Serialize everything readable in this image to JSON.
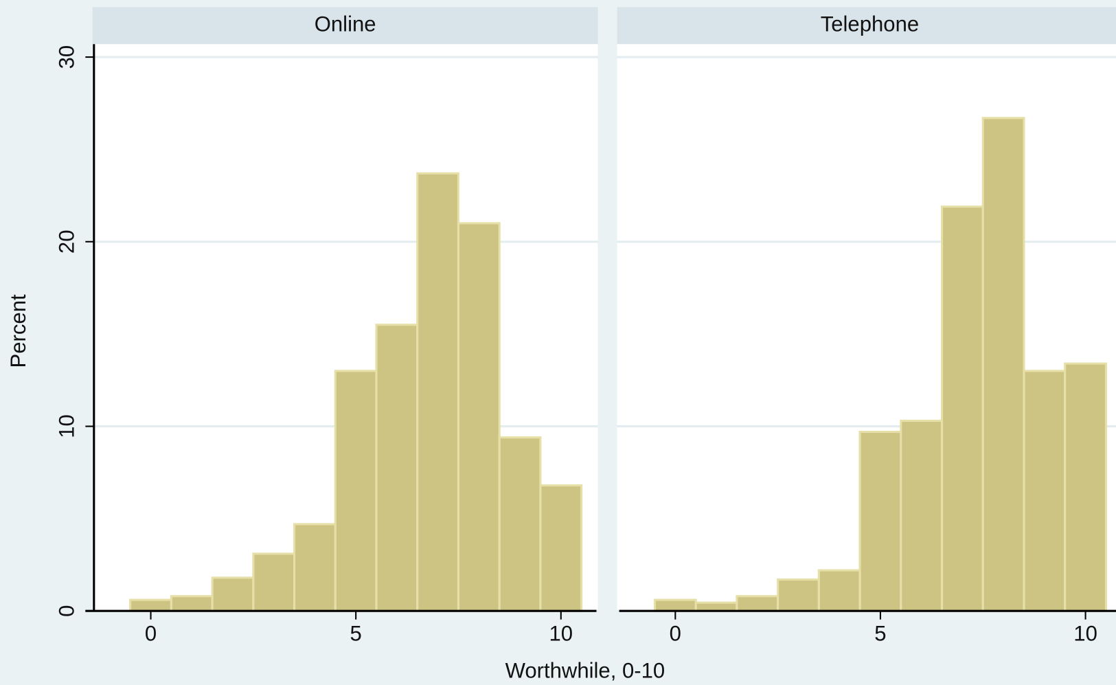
{
  "chart_data": [
    {
      "type": "histogram",
      "title": "Online",
      "ylabel": "Percent",
      "xlabel": "Worthwhile, 0-10",
      "bins": [
        -0.5,
        0.5,
        1.5,
        2.5,
        3.5,
        4.5,
        5.5,
        6.5,
        7.5,
        8.5,
        9.5,
        10.5
      ],
      "values": [
        0.6,
        0.8,
        1.8,
        3.1,
        4.7,
        13.0,
        15.5,
        23.7,
        21.0,
        9.4,
        6.8
      ],
      "color": "#cdc383",
      "xlim": [
        -1.42,
        10.9
      ],
      "ylim": [
        0,
        30.7
      ],
      "xticks": [
        0,
        5,
        10
      ],
      "yticks": [
        0,
        10,
        20,
        30
      ],
      "grid": true
    },
    {
      "type": "histogram",
      "title": "Telephone",
      "bins": [
        -0.5,
        0.5,
        1.5,
        2.5,
        3.5,
        4.5,
        5.5,
        6.5,
        7.5,
        8.5,
        9.5,
        10.5
      ],
      "values": [
        0.6,
        0.45,
        0.8,
        1.7,
        2.2,
        9.7,
        10.3,
        21.9,
        26.7,
        13.0,
        13.4
      ],
      "color": "#cdc383",
      "xlim": [
        -1.42,
        10.9
      ],
      "ylim": [
        0,
        30.7
      ],
      "xticks": [
        0,
        5,
        10
      ],
      "yticks": [
        0,
        10,
        20,
        30
      ],
      "grid": true
    }
  ]
}
